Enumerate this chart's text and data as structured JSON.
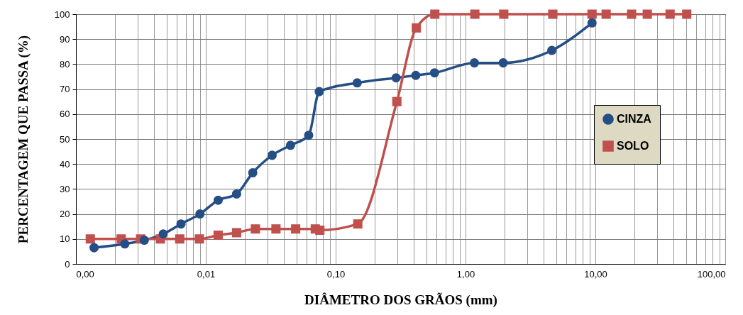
{
  "chart_data": {
    "type": "line",
    "xlabel": "DIÂMETRO DOS GRÃOS (mm)",
    "ylabel": "PERCENTAGEM QUE PASSA (%)",
    "log": "x",
    "grid": true,
    "legend": "right",
    "line_style": "solid",
    "xlim": [
      0.001,
      100
    ],
    "ylim": [
      0,
      100
    ],
    "xticks": [
      {
        "value": 0.001,
        "label": "0,00"
      },
      {
        "value": 0.002,
        "label": null
      },
      {
        "value": 0.003,
        "label": null
      },
      {
        "value": 0.004,
        "label": null
      },
      {
        "value": 0.005,
        "label": null
      },
      {
        "value": 0.006,
        "label": null
      },
      {
        "value": 0.007,
        "label": null
      },
      {
        "value": 0.008,
        "label": null
      },
      {
        "value": 0.009,
        "label": null
      },
      {
        "value": 0.01,
        "label": "0,01"
      },
      {
        "value": 0.02,
        "label": null
      },
      {
        "value": 0.03,
        "label": null
      },
      {
        "value": 0.04,
        "label": null
      },
      {
        "value": 0.05,
        "label": null
      },
      {
        "value": 0.06,
        "label": null
      },
      {
        "value": 0.07,
        "label": null
      },
      {
        "value": 0.08,
        "label": null
      },
      {
        "value": 0.09,
        "label": null
      },
      {
        "value": 0.1,
        "label": "0,10"
      },
      {
        "value": 0.2,
        "label": null
      },
      {
        "value": 0.3,
        "label": null
      },
      {
        "value": 0.4,
        "label": null
      },
      {
        "value": 0.5,
        "label": null
      },
      {
        "value": 0.6,
        "label": null
      },
      {
        "value": 0.7,
        "label": null
      },
      {
        "value": 0.8,
        "label": null
      },
      {
        "value": 0.9,
        "label": null
      },
      {
        "value": 1,
        "label": "1,00"
      },
      {
        "value": 2,
        "label": null
      },
      {
        "value": 3,
        "label": null
      },
      {
        "value": 4,
        "label": null
      },
      {
        "value": 5,
        "label": null
      },
      {
        "value": 6,
        "label": null
      },
      {
        "value": 7,
        "label": null
      },
      {
        "value": 8,
        "label": null
      },
      {
        "value": 9,
        "label": null
      },
      {
        "value": 10,
        "label": "10,00"
      },
      {
        "value": 20,
        "label": null
      },
      {
        "value": 30,
        "label": null
      },
      {
        "value": 40,
        "label": null
      },
      {
        "value": 50,
        "label": null
      },
      {
        "value": 60,
        "label": null
      },
      {
        "value": 70,
        "label": null
      },
      {
        "value": 80,
        "label": null
      },
      {
        "value": 90,
        "label": null
      },
      {
        "value": 100,
        "label": "100,00"
      }
    ],
    "yticks": [
      0,
      10,
      20,
      30,
      40,
      50,
      60,
      70,
      80,
      90,
      100
    ],
    "series": [
      {
        "name": "CINZA",
        "color": "#254e85",
        "marker": "circle",
        "x": [
          0.00138,
          0.00238,
          0.00336,
          0.0047,
          0.00644,
          0.00902,
          0.01245,
          0.01726,
          0.023,
          0.0324,
          0.0449,
          0.062,
          0.0748,
          0.1465,
          0.292,
          0.414,
          0.577,
          1.17,
          1.95,
          4.62,
          9.42
        ],
        "values": [
          6.5,
          8,
          9.5,
          12,
          16,
          20,
          25.5,
          28,
          36.5,
          43.5,
          47.5,
          51.5,
          69,
          72.5,
          74.5,
          75.5,
          76.5,
          80.5,
          80.5,
          85.5,
          96.5
        ]
      },
      {
        "name": "SOLO",
        "color": "#c0504d",
        "marker": "square",
        "x": [
          0.00129,
          0.00223,
          0.00315,
          0.00447,
          0.0063,
          0.00893,
          0.01245,
          0.01726,
          0.0241,
          0.0347,
          0.0492,
          0.0697,
          0.0755,
          0.148,
          0.296,
          0.418,
          0.58,
          1.18,
          1.97,
          4.7,
          9.42,
          12.1,
          19,
          25.1,
          37.6,
          50.5
        ],
        "values": [
          10,
          10,
          10,
          10,
          10,
          10,
          11.5,
          12.5,
          14,
          14,
          14,
          14,
          13.5,
          16,
          65,
          94.5,
          100,
          100,
          100,
          100,
          100,
          100,
          100,
          100,
          100,
          100
        ]
      }
    ]
  }
}
